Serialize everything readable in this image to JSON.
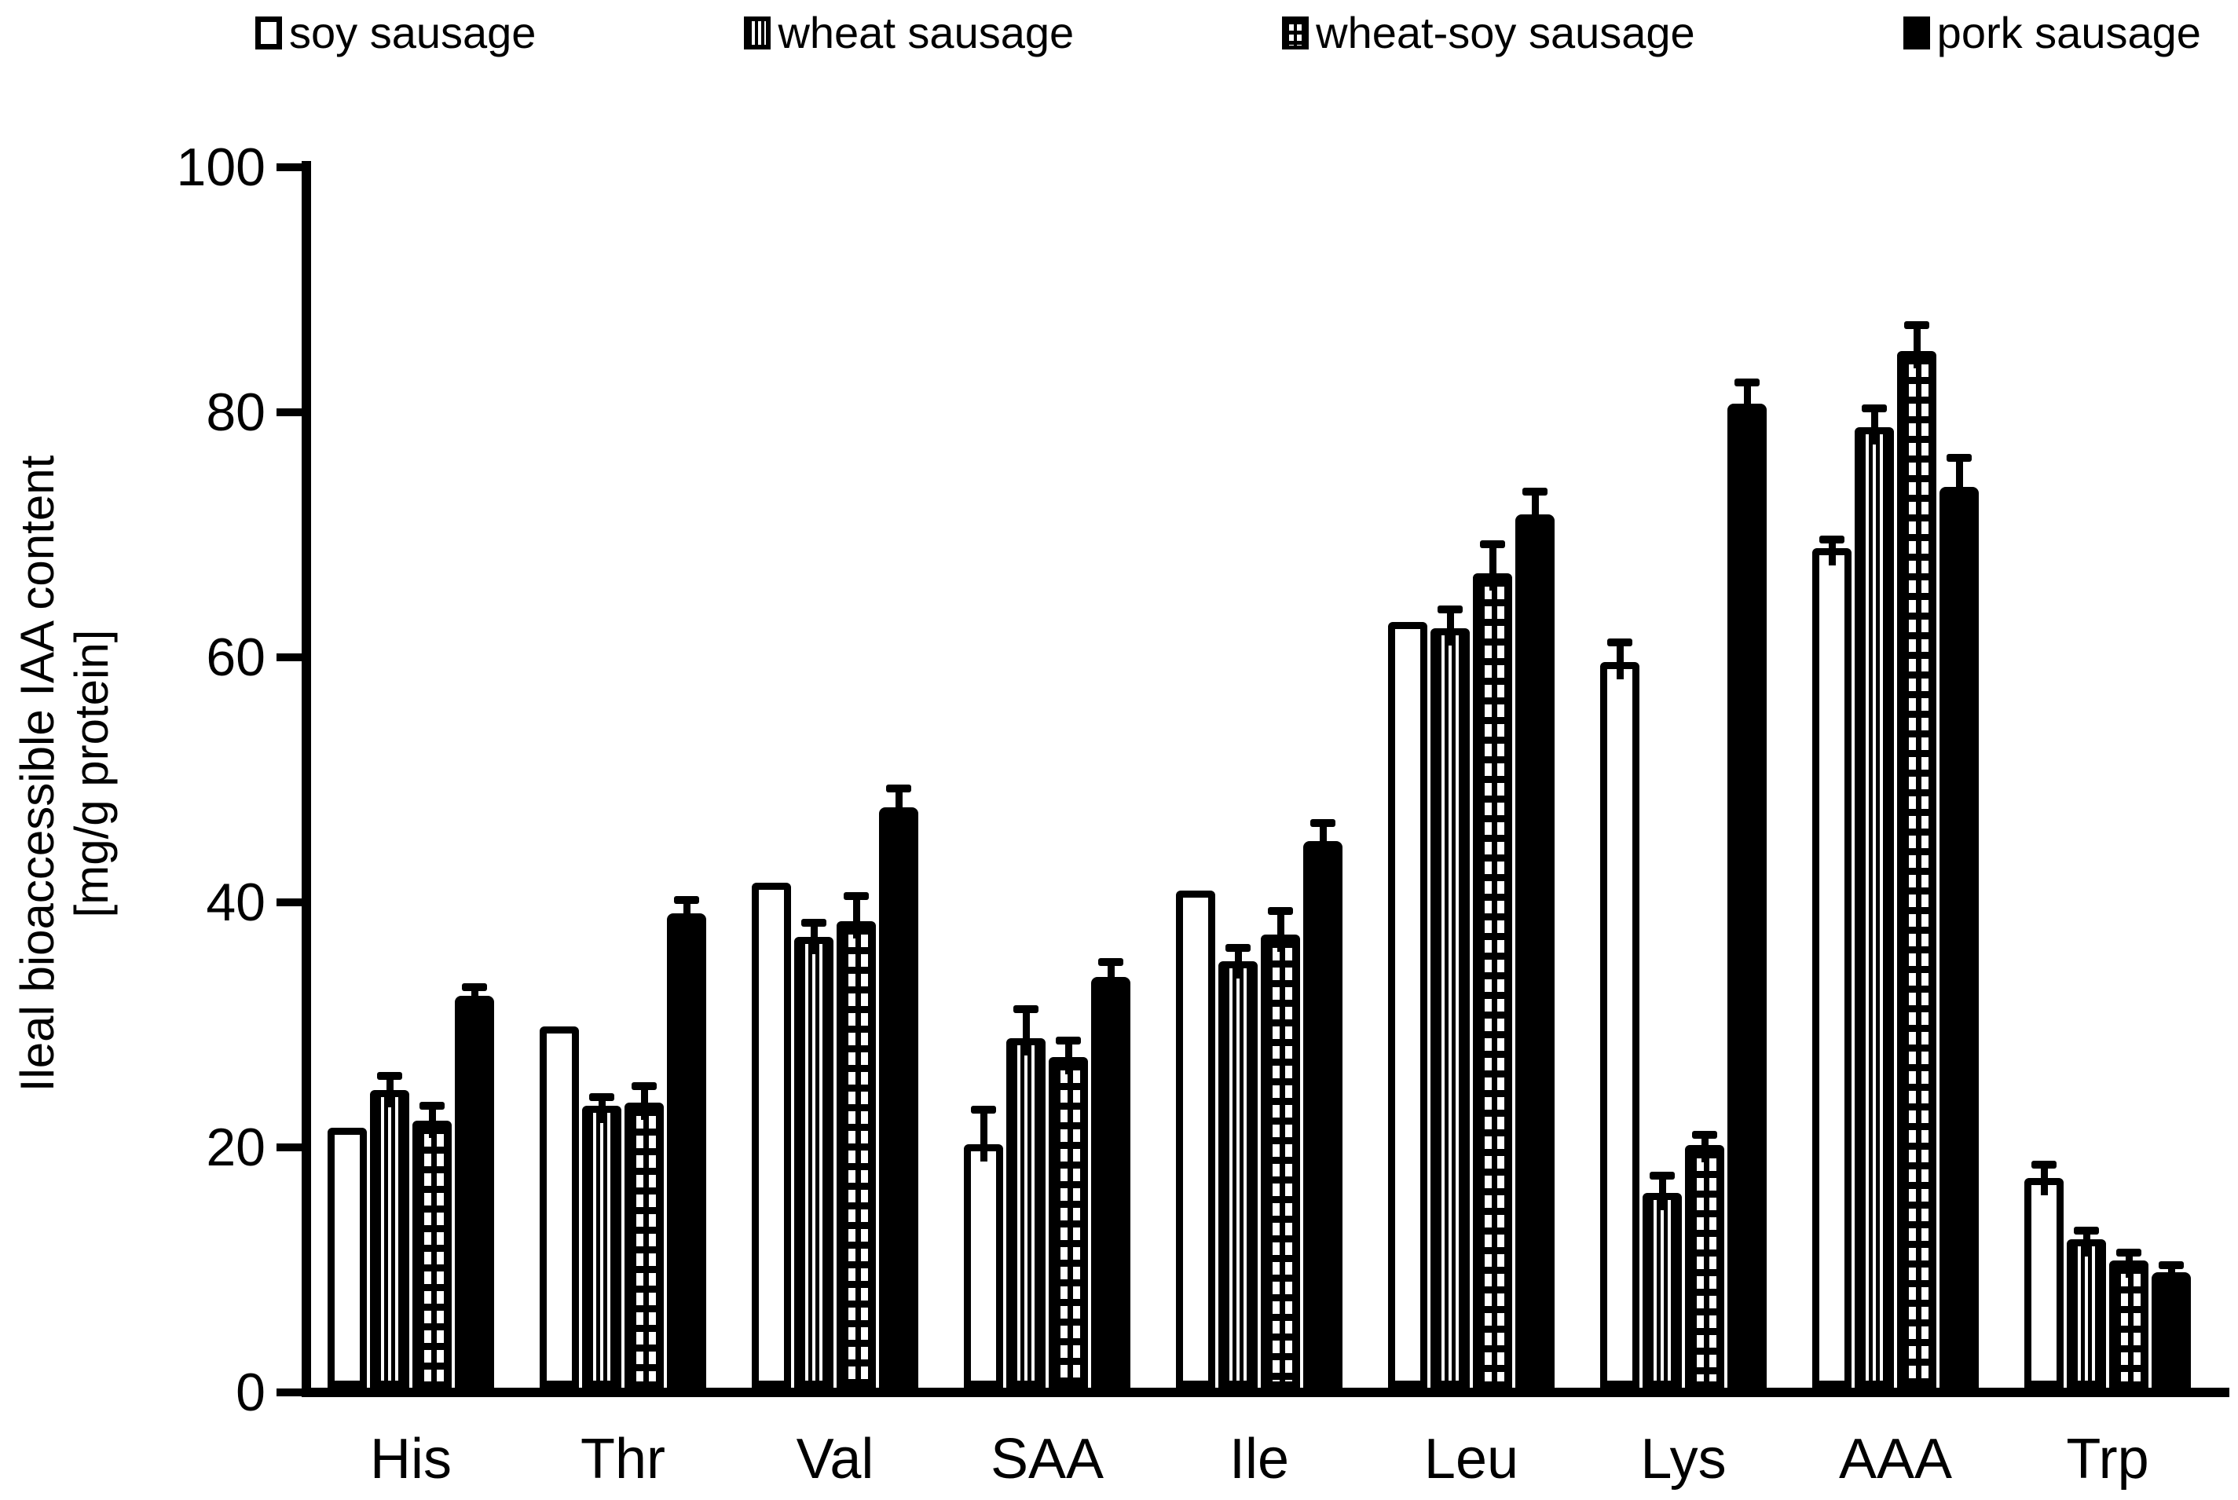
{
  "colors": {
    "ink": "#000000",
    "background": "#ffffff"
  },
  "legend": {
    "items": [
      {
        "label": "soy sausage",
        "pattern": "open"
      },
      {
        "label": "wheat sausage",
        "pattern": "vertical-stripes"
      },
      {
        "label": "wheat-soy sausage",
        "pattern": "grid"
      },
      {
        "label": "pork sausage",
        "pattern": "solid"
      }
    ]
  },
  "y_axis": {
    "title_line1": "Ileal bioaccessible IAA content",
    "title_line2": "[mg/g protein]",
    "tick_values": [
      0,
      20,
      40,
      60,
      80,
      100
    ]
  },
  "chart_data": {
    "type": "bar",
    "title": "",
    "xlabel": "",
    "ylabel": "Ileal bioaccessible IAA content [mg/g protein]",
    "ylim": [
      0,
      100
    ],
    "ytick_step": 20,
    "grid": false,
    "legend_position": "top",
    "error_bars": "upper-only",
    "categories": [
      "His",
      "Thr",
      "Val",
      "SAA",
      "Ile",
      "Leu",
      "Lys",
      "AAA",
      "Trp"
    ],
    "series": [
      {
        "name": "soy sausage",
        "pattern": "open",
        "values": [
          21.2,
          29.5,
          41.2,
          19.9,
          40.6,
          62.5,
          59.2,
          68.5,
          17.1
        ],
        "errors": [
          0,
          0,
          0,
          2.5,
          0,
          0,
          1.3,
          0.4,
          0.8
        ]
      },
      {
        "name": "wheat sausage",
        "pattern": "vertical-stripes",
        "values": [
          24.3,
          23.0,
          36.8,
          28.5,
          34.8,
          62.0,
          15.9,
          78.4,
          12.1
        ],
        "errors": [
          0.8,
          0.4,
          0.8,
          2.1,
          0.8,
          1.2,
          1.1,
          1.2,
          0.4
        ]
      },
      {
        "name": "wheat-soy sausage",
        "pattern": "grid",
        "values": [
          21.8,
          23.3,
          38.1,
          27.0,
          37.0,
          66.5,
          19.8,
          84.6,
          10.4
        ],
        "errors": [
          0.9,
          1.0,
          1.7,
          1.0,
          1.6,
          2.0,
          0.5,
          1.8,
          0.3
        ]
      },
      {
        "name": "pork sausage",
        "pattern": "solid",
        "values": [
          32.0,
          38.7,
          47.4,
          33.5,
          44.6,
          71.3,
          80.3,
          73.5,
          9.4
        ],
        "errors": [
          0.4,
          0.8,
          1.2,
          0.9,
          1.2,
          1.5,
          1.4,
          2.1,
          0.3
        ]
      }
    ]
  }
}
